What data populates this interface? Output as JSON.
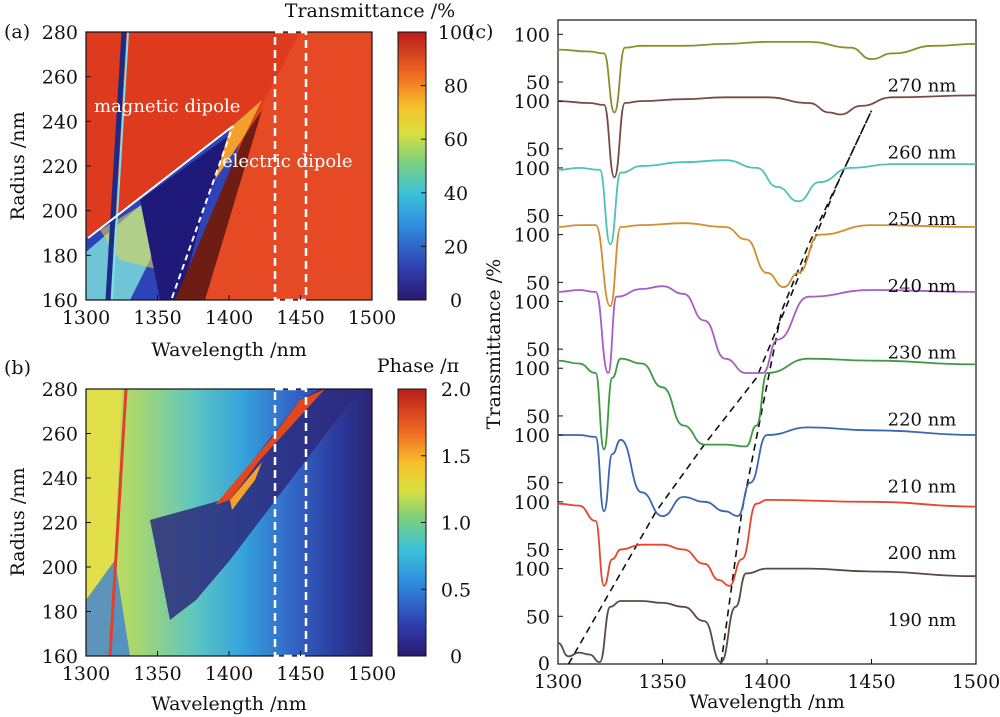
{
  "chart_data": [
    {
      "id": "a",
      "type": "heatmap",
      "panel_label": "(a)",
      "xlabel": "Wavelength /nm",
      "ylabel": "Radius /nm",
      "xlim": [
        1300,
        1500
      ],
      "ylim": [
        160,
        280
      ],
      "xticks": [
        1300,
        1350,
        1400,
        1450,
        1500
      ],
      "yticks": [
        160,
        180,
        200,
        220,
        240,
        260,
        280
      ],
      "colorbar": {
        "title": "Transmittance /%",
        "ticks": [
          0,
          20,
          40,
          60,
          80,
          100
        ],
        "range": [
          0,
          100
        ]
      },
      "annotations": [
        "magnetic dipole",
        "electric dipole"
      ],
      "magnetic_dipole_line": [
        [
          1300,
          190
        ],
        [
          1400,
          238
        ]
      ],
      "electric_dipole_line": [
        [
          1360,
          160
        ],
        [
          1402,
          238
        ]
      ],
      "sharp_resonance": [
        [
          1310,
          160
        ],
        [
          1326,
          280
        ]
      ],
      "highlight_wavelength_range": [
        1435,
        1456
      ],
      "colormap": "jet"
    },
    {
      "id": "b",
      "type": "heatmap",
      "panel_label": "(b)",
      "xlabel": "Wavelength /nm",
      "ylabel": "Radius /nm",
      "xlim": [
        1300,
        1500
      ],
      "ylim": [
        160,
        280
      ],
      "xticks": [
        1300,
        1350,
        1400,
        1450,
        1500
      ],
      "yticks": [
        160,
        180,
        200,
        220,
        240,
        260,
        280
      ],
      "colorbar": {
        "title": "Phase /π",
        "ticks": [
          "0",
          "0.5",
          "1.0",
          "1.5",
          "2.0"
        ],
        "range": [
          0,
          2
        ]
      },
      "phase_jump_line": [
        [
          1320,
          190
        ],
        [
          1455,
          280
        ]
      ],
      "highlight_wavelength_range": [
        1435,
        1456
      ],
      "colormap": "jet"
    },
    {
      "id": "c",
      "type": "line",
      "panel_label": "(c)",
      "xlabel": "Wavelength /nm",
      "ylabel": "Transmittance /%",
      "xlim": [
        1300,
        1500
      ],
      "xticks": [
        1300,
        1350,
        1400,
        1450,
        1500
      ],
      "ytick_labels_per_curve": [
        "50",
        "100"
      ],
      "ytick_bottom": "0",
      "offset_per_curve": 70,
      "series": [
        {
          "name": "190 nm",
          "color": "#5a4a42",
          "x": [
            1300,
            1305,
            1310,
            1315,
            1320,
            1325,
            1330,
            1340,
            1350,
            1360,
            1370,
            1378,
            1385,
            1390,
            1400,
            1420,
            1450,
            1500
          ],
          "y": [
            22,
            8,
            12,
            10,
            2,
            60,
            66,
            66,
            64,
            60,
            45,
            2,
            60,
            95,
            100,
            100,
            97,
            92
          ]
        },
        {
          "name": "200 nm",
          "color": "#e8442e",
          "x": [
            1300,
            1310,
            1318,
            1322,
            1326,
            1330,
            1340,
            1350,
            1360,
            1370,
            1377,
            1382,
            1388,
            1395,
            1400,
            1450,
            1500
          ],
          "y": [
            98,
            96,
            80,
            12,
            40,
            50,
            55,
            55,
            50,
            35,
            18,
            12,
            40,
            98,
            102,
            100,
            95
          ]
        },
        {
          "name": "210 nm",
          "color": "#3c66b0",
          "x": [
            1300,
            1310,
            1318,
            1322,
            1326,
            1330,
            1340,
            1350,
            1360,
            1370,
            1380,
            1386,
            1392,
            1400,
            1420,
            1450,
            1500
          ],
          "y": [
            100,
            100,
            98,
            20,
            80,
            95,
            40,
            15,
            35,
            30,
            20,
            15,
            50,
            100,
            108,
            105,
            100
          ]
        },
        {
          "name": "220 nm",
          "color": "#3e9a45",
          "x": [
            1300,
            1310,
            1318,
            1322,
            1326,
            1330,
            1340,
            1350,
            1360,
            1370,
            1380,
            1390,
            1395,
            1400,
            1420,
            1450,
            1500
          ],
          "y": [
            108,
            105,
            95,
            15,
            90,
            110,
            105,
            80,
            40,
            20,
            20,
            18,
            40,
            95,
            110,
            108,
            104
          ]
        },
        {
          "name": "230 nm",
          "color": "#a65ec2",
          "x": [
            1300,
            1310,
            1318,
            1324,
            1328,
            1340,
            1350,
            1360,
            1370,
            1380,
            1390,
            1398,
            1405,
            1420,
            1450,
            1500
          ],
          "y": [
            110,
            112,
            110,
            25,
            105,
            113,
            116,
            108,
            80,
            40,
            25,
            25,
            60,
            105,
            112,
            110
          ]
        },
        {
          "name": "240 nm",
          "color": "#d0902c",
          "x": [
            1300,
            1310,
            1318,
            1325,
            1330,
            1340,
            1360,
            1380,
            1390,
            1400,
            1408,
            1415,
            1425,
            1450,
            1500
          ],
          "y": [
            108,
            110,
            110,
            25,
            108,
            110,
            112,
            108,
            95,
            60,
            45,
            60,
            100,
            110,
            108
          ]
        },
        {
          "name": "250 nm",
          "color": "#4cc3b8",
          "x": [
            1300,
            1310,
            1320,
            1325,
            1330,
            1340,
            1360,
            1380,
            1395,
            1405,
            1415,
            1425,
            1440,
            1460,
            1500
          ],
          "y": [
            98,
            100,
            98,
            20,
            95,
            102,
            106,
            108,
            100,
            80,
            65,
            85,
            100,
            104,
            104
          ]
        },
        {
          "name": "260 nm",
          "color": "#7a4b44",
          "x": [
            1300,
            1315,
            1322,
            1327,
            1332,
            1340,
            1360,
            1380,
            1400,
            1420,
            1430,
            1435,
            1445,
            1460,
            1500
          ],
          "y": [
            100,
            98,
            96,
            20,
            98,
            100,
            102,
            104,
            104,
            98,
            88,
            86,
            95,
            104,
            106
          ]
        },
        {
          "name": "270 nm",
          "color": "#8d8d2e",
          "x": [
            1300,
            1315,
            1322,
            1327,
            1332,
            1340,
            1360,
            1380,
            1400,
            1420,
            1440,
            1450,
            1460,
            1480,
            1500
          ],
          "y": [
            84,
            82,
            80,
            18,
            86,
            88,
            88,
            90,
            92,
            92,
            86,
            74,
            80,
            88,
            90
          ]
        }
      ],
      "guide_lines": [
        {
          "style": "dashed",
          "points": [
            [
              1305,
              0
            ],
            [
              1347,
              210
            ],
            [
              1370,
              220
            ],
            [
              1395,
              230
            ],
            [
              1435,
              260
            ],
            [
              1450,
              270
            ]
          ]
        },
        {
          "style": "dashed",
          "points": [
            [
              1378,
              0
            ],
            [
              1388,
              210
            ],
            [
              1407,
              240
            ],
            [
              1420,
              250
            ],
            [
              1435,
              260
            ],
            [
              1450,
              270
            ]
          ]
        }
      ]
    }
  ]
}
